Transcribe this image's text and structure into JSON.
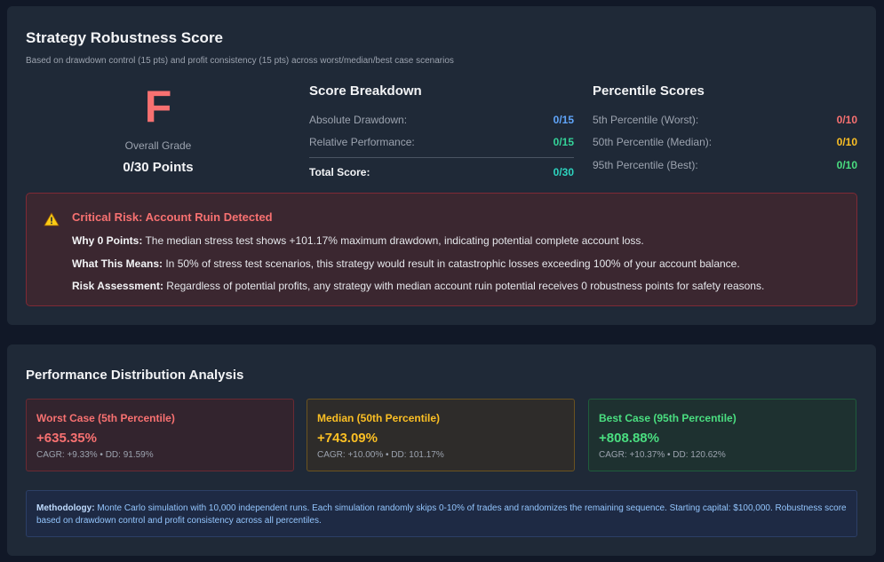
{
  "robustness": {
    "title": "Strategy Robustness Score",
    "subtitle": "Based on drawdown control (15 pts) and profit consistency (15 pts) across worst/median/best case scenarios",
    "grade": "F",
    "grade_label": "Overall Grade",
    "points": "0/30 Points",
    "breakdown": {
      "title": "Score Breakdown",
      "rows": [
        {
          "label": "Absolute Drawdown:",
          "value": "0/15",
          "color": "#60a5fa"
        },
        {
          "label": "Relative Performance:",
          "value": "0/15",
          "color": "#34d399"
        }
      ],
      "total_label": "Total Score:",
      "total_value": "0/30",
      "total_color": "#2dd4bf"
    },
    "percentiles": {
      "title": "Percentile Scores",
      "rows": [
        {
          "label": "5th Percentile (Worst):",
          "value": "0/10",
          "color": "#f87171"
        },
        {
          "label": "50th Percentile (Median):",
          "value": "0/10",
          "color": "#fbbf24"
        },
        {
          "label": "95th Percentile (Best):",
          "value": "0/10",
          "color": "#4ade80"
        }
      ]
    },
    "alert": {
      "icon": "warning-triangle-icon",
      "title": "Critical Risk: Account Ruin Detected",
      "lines": [
        {
          "label": "Why 0 Points:",
          "text": " The median stress test shows +101.17% maximum drawdown, indicating potential complete account loss."
        },
        {
          "label": "What This Means:",
          "text": " In 50% of stress test scenarios, this strategy would result in catastrophic losses exceeding 100% of your account balance."
        },
        {
          "label": "Risk Assessment:",
          "text": " Regardless of potential profits, any strategy with median account ruin potential receives 0 robustness points for safety reasons."
        }
      ]
    }
  },
  "distribution": {
    "title": "Performance Distribution Analysis",
    "cases": [
      {
        "title": "Worst Case (5th Percentile)",
        "value": "+635.35%",
        "meta": "CAGR: +9.33% • DD: 91.59%",
        "color": "#f87171"
      },
      {
        "title": "Median (50th Percentile)",
        "value": "+743.09%",
        "meta": "CAGR: +10.00% • DD: 101.17%",
        "color": "#fbbf24"
      },
      {
        "title": "Best Case (95th Percentile)",
        "value": "+808.88%",
        "meta": "CAGR: +10.37% • DD: 120.62%",
        "color": "#4ade80"
      }
    ],
    "methodology": {
      "label": "Methodology:",
      "text": " Monte Carlo simulation with 10,000 independent runs. Each simulation randomly skips 0-10% of trades and randomizes the remaining sequence. Starting capital: $100,000. Robustness score based on drawdown control and profit consistency across all percentiles."
    }
  }
}
